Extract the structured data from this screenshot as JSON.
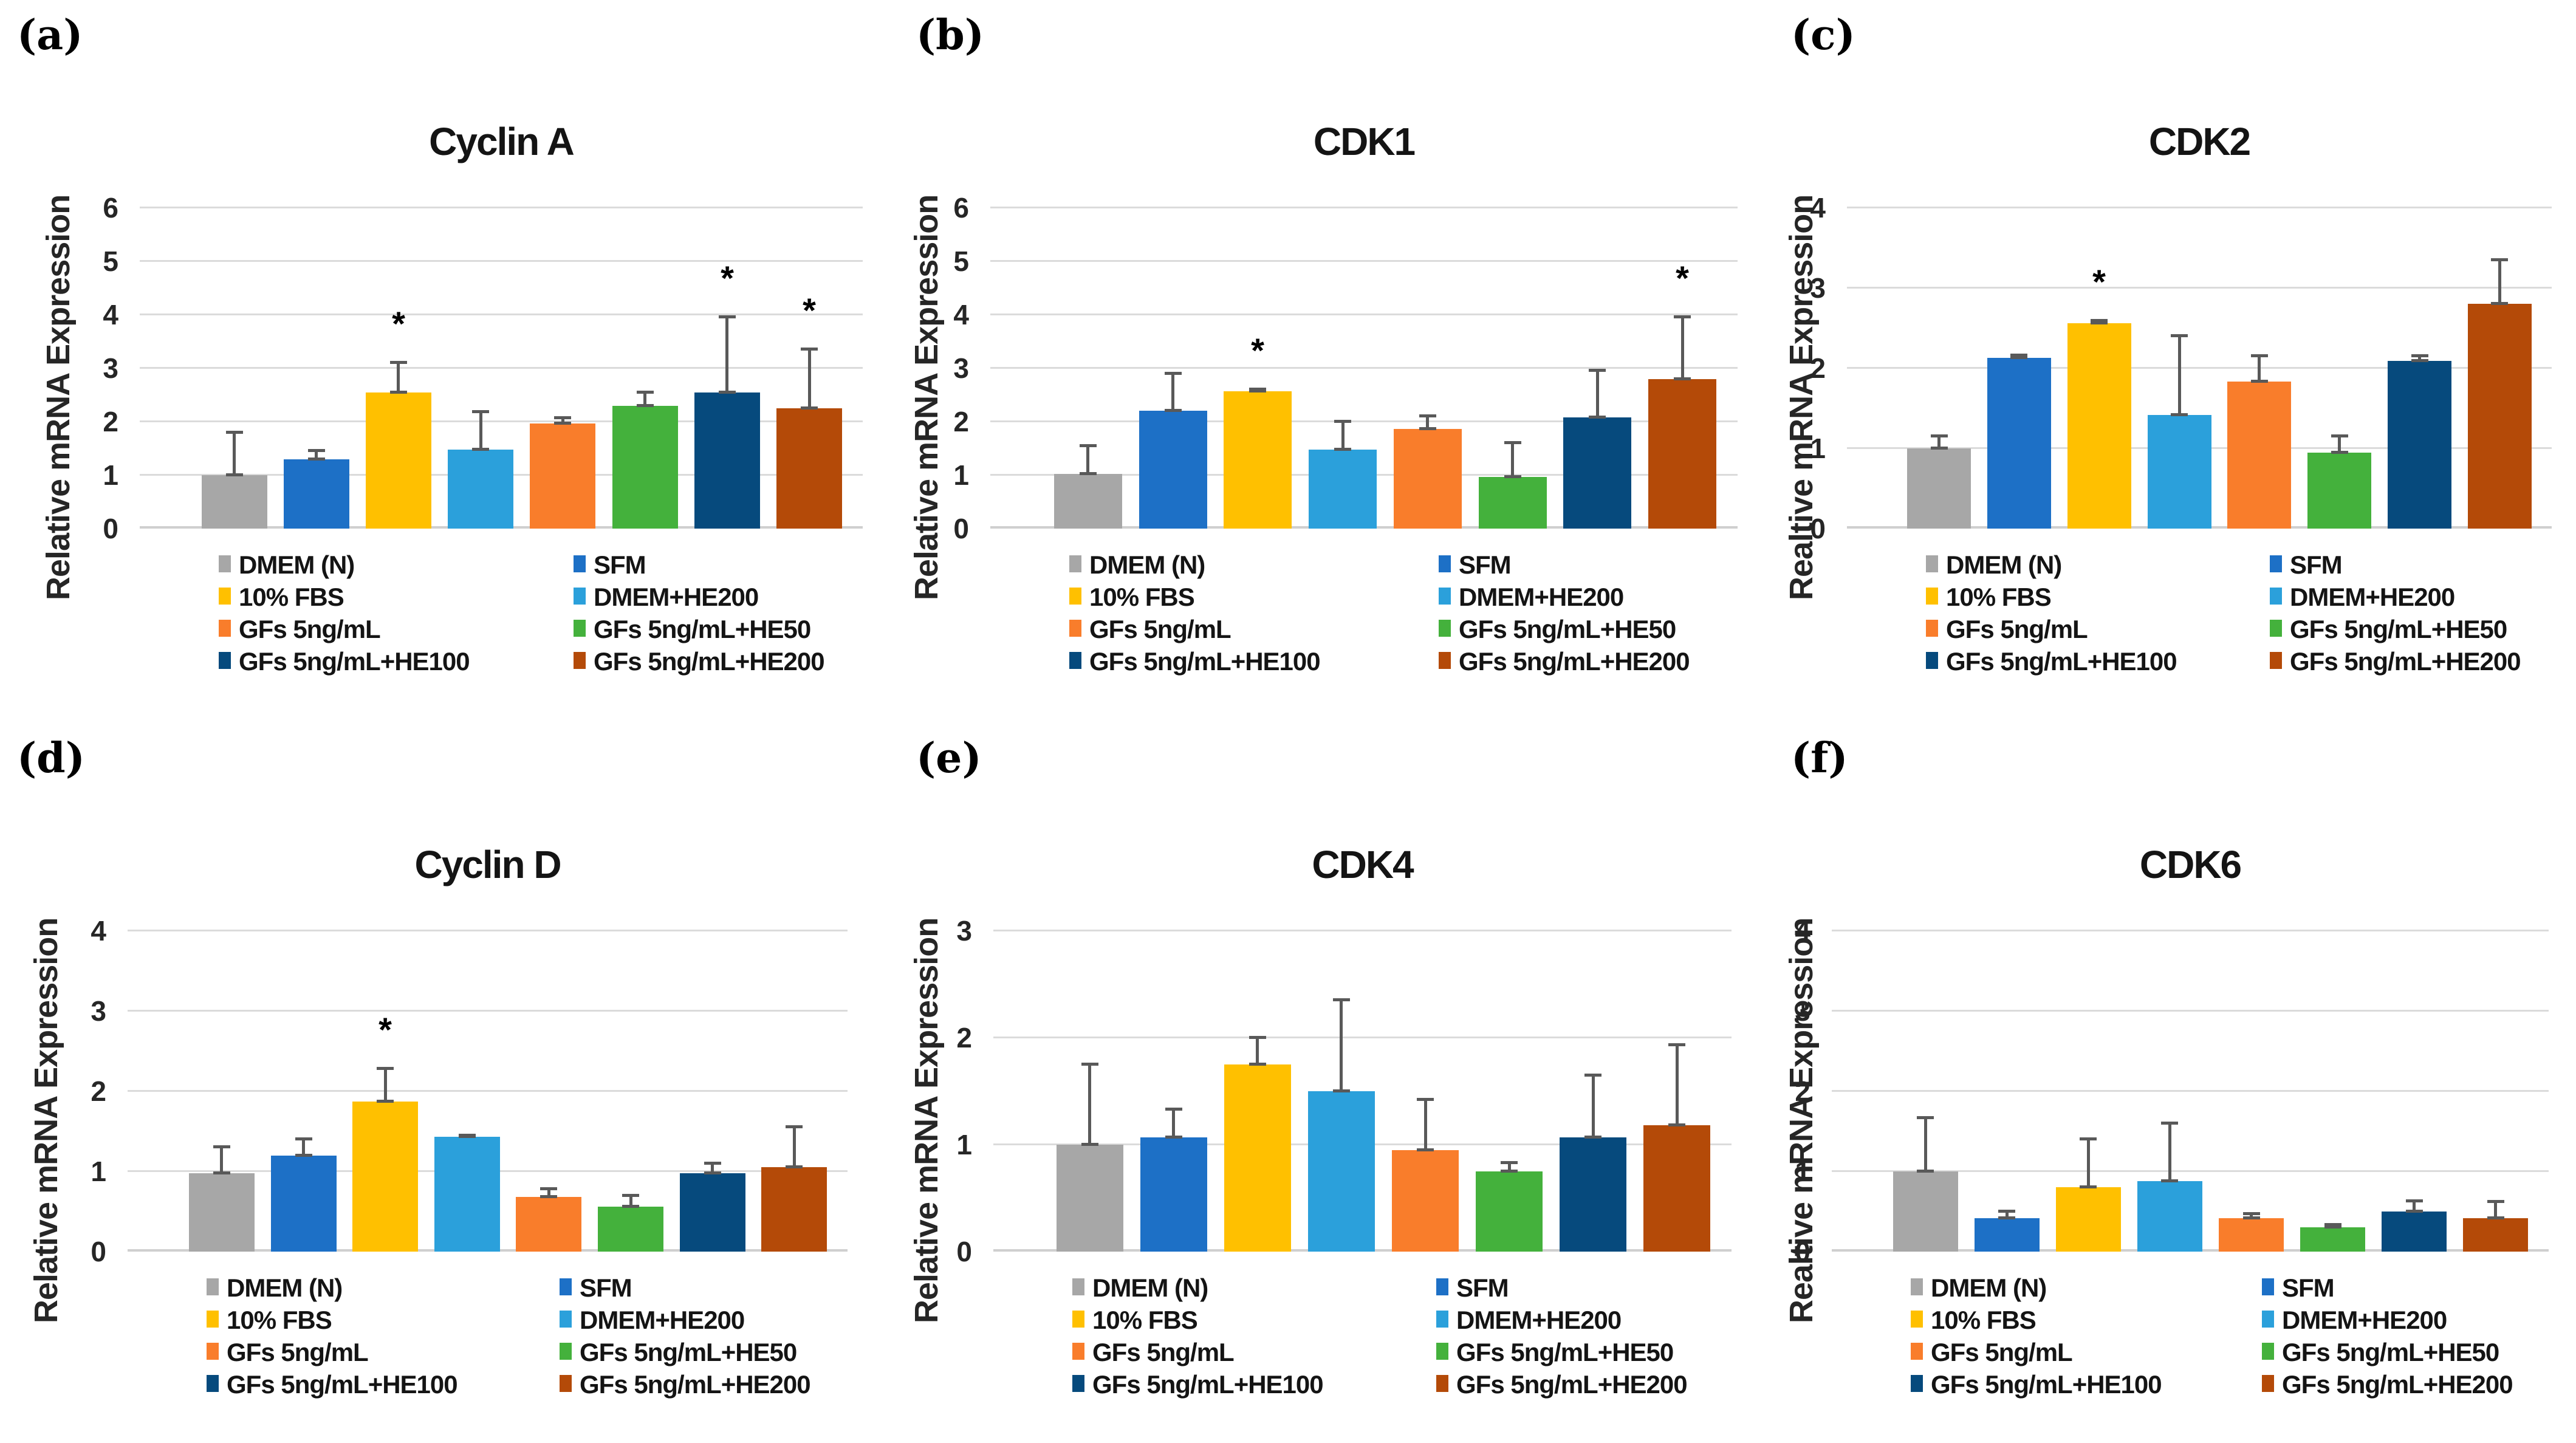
{
  "categories": [
    "DMEM (N)",
    "SFM",
    "10% FBS",
    "DMEM+HE200",
    "GFs 5ng/mL",
    "GFs 5ng/mL+HE50",
    "GFs 5ng/mL+HE100",
    "GFs 5ng/mL+HE200"
  ],
  "series_colors": [
    "#A7A7A7",
    "#1D70C6",
    "#FFC000",
    "#2BA0DB",
    "#F97D2B",
    "#44B13C",
    "#064A7D",
    "#B44A08"
  ],
  "error_bar_color": "#595959",
  "legend": {
    "columns": [
      [
        {
          "label": "DMEM (N)",
          "color": "#A7A7A7"
        },
        {
          "label": "10% FBS",
          "color": "#FFC000"
        },
        {
          "label": "GFs 5ng/mL",
          "color": "#F97D2B"
        },
        {
          "label": "GFs 5ng/mL+HE100",
          "color": "#064A7D"
        }
      ],
      [
        {
          "label": "SFM",
          "color": "#1D70C6"
        },
        {
          "label": "DMEM+HE200",
          "color": "#2BA0DB"
        },
        {
          "label": "GFs 5ng/mL+HE50",
          "color": "#44B13C"
        },
        {
          "label": "GFs 5ng/mL+HE200",
          "color": "#B44A08"
        }
      ]
    ]
  },
  "chart_data": [
    {
      "type": "bar",
      "panel_letter": "(a)",
      "title": "Cyclin A",
      "ylabel": "Relative mRNA Expression",
      "ylim": [
        0,
        6
      ],
      "yticks": [
        0,
        1,
        2,
        3,
        4,
        5,
        6
      ],
      "grid": true,
      "legend_position": "bottom",
      "categories": [
        "DMEM (N)",
        "SFM",
        "10% FBS",
        "DMEM+HE200",
        "GFs 5ng/mL",
        "GFs 5ng/mL+HE50",
        "GFs 5ng/mL+HE100",
        "GFs 5ng/mL+HE200"
      ],
      "values": [
        1.0,
        1.3,
        2.55,
        1.48,
        1.97,
        2.3,
        2.55,
        2.25
      ],
      "error_bar_top": [
        1.8,
        1.45,
        3.1,
        2.18,
        2.07,
        2.55,
        3.95,
        3.35
      ],
      "significant": [
        false,
        false,
        true,
        false,
        false,
        false,
        true,
        true
      ]
    },
    {
      "type": "bar",
      "panel_letter": "(b)",
      "title": "CDK1",
      "ylabel": "Relative mRNA Expression",
      "ylim": [
        0,
        6
      ],
      "yticks": [
        0,
        1,
        2,
        3,
        4,
        5,
        6
      ],
      "grid": true,
      "legend_position": "bottom",
      "categories": [
        "DMEM (N)",
        "SFM",
        "10% FBS",
        "DMEM+HE200",
        "GFs 5ng/mL",
        "GFs 5ng/mL+HE50",
        "GFs 5ng/mL+HE100",
        "GFs 5ng/mL+HE200"
      ],
      "values": [
        1.02,
        2.2,
        2.57,
        1.48,
        1.86,
        0.97,
        2.08,
        2.8
      ],
      "error_bar_top": [
        1.55,
        2.9,
        2.6,
        2.0,
        2.1,
        1.6,
        2.95,
        3.95
      ],
      "significant": [
        false,
        false,
        true,
        false,
        false,
        false,
        false,
        true
      ]
    },
    {
      "type": "bar",
      "panel_letter": "(c)",
      "title": "CDK2",
      "ylabel": "Realtive mRNA Expression",
      "ylim": [
        0,
        4
      ],
      "yticks": [
        0,
        1,
        2,
        3,
        4
      ],
      "grid": true,
      "legend_position": "bottom",
      "categories": [
        "DMEM (N)",
        "SFM",
        "10% FBS",
        "DMEM+HE200",
        "GFs 5ng/mL",
        "GFs 5ng/mL+HE50",
        "GFs 5ng/mL+HE100",
        "GFs 5ng/mL+HE200"
      ],
      "values": [
        1.0,
        2.13,
        2.56,
        1.42,
        1.83,
        0.95,
        2.09,
        2.8
      ],
      "error_bar_top": [
        1.15,
        2.16,
        2.59,
        2.4,
        2.15,
        1.15,
        2.15,
        3.35
      ],
      "significant": [
        false,
        false,
        true,
        false,
        false,
        false,
        false,
        false
      ]
    },
    {
      "type": "bar",
      "panel_letter": "(d)",
      "title": "Cyclin D",
      "ylabel": "Relative mRNA Expression",
      "ylim": [
        0,
        4
      ],
      "yticks": [
        0,
        1,
        2,
        3,
        4
      ],
      "grid": true,
      "legend_position": "bottom",
      "categories": [
        "DMEM (N)",
        "SFM",
        "10% FBS",
        "DMEM+HE200",
        "GFs 5ng/mL",
        "GFs 5ng/mL+HE50",
        "GFs 5ng/mL+HE100",
        "GFs 5ng/mL+HE200"
      ],
      "values": [
        0.98,
        1.2,
        1.87,
        1.43,
        0.68,
        0.56,
        0.98,
        1.05
      ],
      "error_bar_top": [
        1.3,
        1.4,
        2.28,
        1.45,
        0.78,
        0.7,
        1.1,
        1.55
      ],
      "significant": [
        false,
        false,
        true,
        false,
        false,
        false,
        false,
        false
      ]
    },
    {
      "type": "bar",
      "panel_letter": "(e)",
      "title": "CDK4",
      "ylabel": "Relative mRNA Expression",
      "ylim": [
        0,
        3
      ],
      "yticks": [
        0,
        1,
        2,
        3
      ],
      "grid": true,
      "legend_position": "bottom",
      "categories": [
        "DMEM (N)",
        "SFM",
        "10% FBS",
        "DMEM+HE200",
        "GFs 5ng/mL",
        "GFs 5ng/mL+HE50",
        "GFs 5ng/mL+HE100",
        "GFs 5ng/mL+HE200"
      ],
      "values": [
        1.0,
        1.07,
        1.75,
        1.5,
        0.95,
        0.75,
        1.07,
        1.18
      ],
      "error_bar_top": [
        1.75,
        1.33,
        2.0,
        2.35,
        1.42,
        0.83,
        1.65,
        1.93
      ],
      "significant": [
        false,
        false,
        false,
        false,
        false,
        false,
        false,
        false
      ]
    },
    {
      "type": "bar",
      "panel_letter": "(f)",
      "title": "CDK6",
      "ylabel": "Realtive mRNA Expression",
      "ylim": [
        0,
        4
      ],
      "yticks": [
        0,
        1,
        2,
        3,
        4
      ],
      "grid": true,
      "legend_position": "bottom",
      "categories": [
        "DMEM (N)",
        "SFM",
        "10% FBS",
        "DMEM+HE200",
        "GFs 5ng/mL",
        "GFs 5ng/mL+HE50",
        "GFs 5ng/mL+HE100",
        "GFs 5ng/mL+HE200"
      ],
      "values": [
        1.0,
        0.42,
        0.8,
        0.88,
        0.42,
        0.3,
        0.5,
        0.42
      ],
      "error_bar_top": [
        1.67,
        0.5,
        1.4,
        1.6,
        0.47,
        0.33,
        0.63,
        0.62
      ],
      "significant": [
        false,
        false,
        false,
        false,
        false,
        false,
        false,
        false
      ]
    }
  ]
}
